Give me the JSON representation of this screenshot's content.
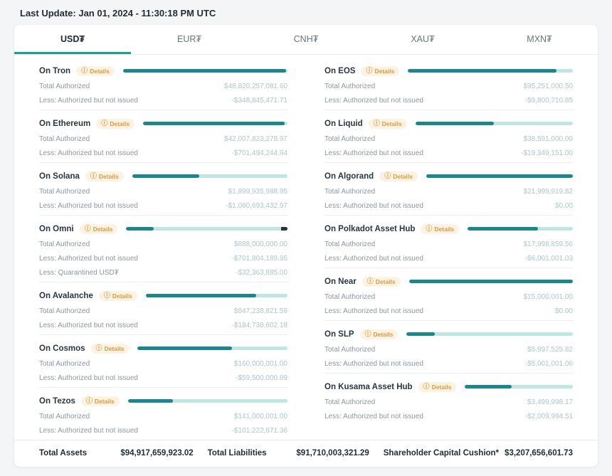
{
  "header": {
    "last_update": "Last Update: Jan 01, 2024 - 11:30:18 PM UTC"
  },
  "tabs": [
    {
      "key": "usdt",
      "label": "USD₮",
      "active": true
    },
    {
      "key": "eurt",
      "label": "EUR₮",
      "active": false
    },
    {
      "key": "cnht",
      "label": "CNH₮",
      "active": false
    },
    {
      "key": "xaut",
      "label": "XAU₮",
      "active": false
    },
    {
      "key": "mxnt",
      "label": "MXN₮",
      "active": false
    }
  ],
  "labels": {
    "details": "Details",
    "info_icon": "ⓘ"
  },
  "colors": {
    "accent_teal": "#17a099",
    "bar_fill": "#15898b",
    "bar_track": "#bfe7e2",
    "bar_quarantine": "#2a333b",
    "badge_bg": "#fdf3e2",
    "badge_text": "#e09a3c",
    "value_text": "#aec7ca"
  },
  "columns": {
    "left": [
      {
        "name": "On Tron",
        "fill_pct": 99,
        "end_pct": 0,
        "rows": [
          {
            "label": "Total Authorized",
            "value": "$48,820,257,081.60"
          },
          {
            "label": "Less: Authorized but not issued",
            "value": "-$348,845,471.71"
          }
        ]
      },
      {
        "name": "On Ethereum",
        "fill_pct": 98,
        "end_pct": 0,
        "rows": [
          {
            "label": "Total Authorized",
            "value": "$42,007,823,278.97"
          },
          {
            "label": "Less: Authorized but not issued",
            "value": "-$701,494,244.94"
          }
        ]
      },
      {
        "name": "On Solana",
        "fill_pct": 43,
        "end_pct": 0,
        "rows": [
          {
            "label": "Total Authorized",
            "value": "$1,899,935,988.95"
          },
          {
            "label": "Less: Authorized but not issued",
            "value": "-$1,080,693,432.97"
          }
        ]
      },
      {
        "name": "On Omni",
        "fill_pct": 17,
        "end_pct": 4,
        "rows": [
          {
            "label": "Total Authorized",
            "value": "$888,000,000.00"
          },
          {
            "label": "Less: Authorized but not issued",
            "value": "-$701,804,189.95"
          },
          {
            "label": "Less: Quarantined USD₮",
            "value": "-$32,363,885.00"
          }
        ]
      },
      {
        "name": "On Avalanche",
        "fill_pct": 78,
        "end_pct": 0,
        "rows": [
          {
            "label": "Total Authorized",
            "value": "$847,238,821.59"
          },
          {
            "label": "Less: Authorized but not issued",
            "value": "-$184,738,602.18"
          }
        ]
      },
      {
        "name": "On Cosmos",
        "fill_pct": 63,
        "end_pct": 0,
        "rows": [
          {
            "label": "Total Authorized",
            "value": "$160,000,001.00"
          },
          {
            "label": "Less: Authorized but not issued",
            "value": "-$59,500,000.89"
          }
        ]
      },
      {
        "name": "On Tezos",
        "fill_pct": 28,
        "end_pct": 0,
        "rows": [
          {
            "label": "Total Authorized",
            "value": "$141,000,001.00"
          },
          {
            "label": "Less: Authorized but not issued",
            "value": "-$101,222,871.36"
          }
        ]
      }
    ],
    "right": [
      {
        "name": "On EOS",
        "fill_pct": 90,
        "end_pct": 0,
        "rows": [
          {
            "label": "Total Authorized",
            "value": "$95,251,000.50"
          },
          {
            "label": "Less: Authorized but not issued",
            "value": "-$9,800,710.85"
          }
        ]
      },
      {
        "name": "On Liquid",
        "fill_pct": 50,
        "end_pct": 0,
        "rows": [
          {
            "label": "Total Authorized",
            "value": "$38,591,000.00"
          },
          {
            "label": "Less: Authorized but not issued",
            "value": "-$19,349,151.00"
          }
        ]
      },
      {
        "name": "On Algorand",
        "fill_pct": 100,
        "end_pct": 0,
        "rows": [
          {
            "label": "Total Authorized",
            "value": "$21,999,919.82"
          },
          {
            "label": "Less: Authorized but not issued",
            "value": "$0.00"
          }
        ]
      },
      {
        "name": "On Polkadot Asset Hub",
        "fill_pct": 67,
        "end_pct": 0,
        "rows": [
          {
            "label": "Total Authorized",
            "value": "$17,998,859.56"
          },
          {
            "label": "Less: Authorized but not issued",
            "value": "-$6,001,001.03"
          }
        ]
      },
      {
        "name": "On Near",
        "fill_pct": 100,
        "end_pct": 0,
        "rows": [
          {
            "label": "Total Authorized",
            "value": "$15,000,001.00"
          },
          {
            "label": "Less: Authorized but not issued",
            "value": "$0.00"
          }
        ]
      },
      {
        "name": "On SLP",
        "fill_pct": 17,
        "end_pct": 0,
        "rows": [
          {
            "label": "Total Authorized",
            "value": "$5,997,525.82"
          },
          {
            "label": "Less: Authorized but not issued",
            "value": "-$5,001,001.06"
          }
        ]
      },
      {
        "name": "On Kusama Asset Hub",
        "fill_pct": 43,
        "end_pct": 0,
        "rows": [
          {
            "label": "Total Authorized",
            "value": "$3,499,998.17"
          },
          {
            "label": "Less: Authorized but not issued",
            "value": "-$2,009,994.51"
          }
        ]
      }
    ]
  },
  "totals": [
    {
      "label": "Total Assets",
      "value": "$94,917,659,923.02"
    },
    {
      "label": "Total Liabilities",
      "value": "$91,710,003,321.29"
    },
    {
      "label": "Shareholder Capital Cushion*",
      "value": "$3,207,656,601.73"
    }
  ]
}
